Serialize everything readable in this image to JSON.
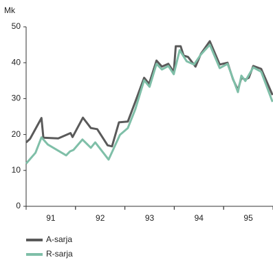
{
  "chart_data": {
    "type": "line",
    "y_label": "Mk",
    "xlim": [
      1991,
      1996
    ],
    "xticks": [
      {
        "value": 1991.5,
        "label": "91"
      },
      {
        "value": 1992.5,
        "label": "92"
      },
      {
        "value": 1993.5,
        "label": "93"
      },
      {
        "value": 1994.5,
        "label": "94"
      },
      {
        "value": 1995.5,
        "label": "95"
      }
    ],
    "ylim": [
      0,
      50
    ],
    "yticks": [
      0,
      10,
      20,
      30,
      40,
      50
    ],
    "grid": false,
    "series": [
      {
        "name": "A-sarja",
        "color": "#5a5a5a",
        "x": [
          1991.0,
          1991.08,
          1991.31,
          1991.35,
          1991.65,
          1991.9,
          1991.94,
          1992.15,
          1992.31,
          1992.44,
          1992.65,
          1992.74,
          1992.88,
          1993.06,
          1993.21,
          1993.39,
          1993.49,
          1993.64,
          1993.75,
          1993.88,
          1993.99,
          1994.03,
          1994.13,
          1994.19,
          1994.28,
          1994.43,
          1994.54,
          1994.72,
          1994.92,
          1995.08,
          1995.19,
          1995.29,
          1995.36,
          1995.44,
          1995.51,
          1995.6,
          1995.76,
          1995.99
        ],
        "values": [
          17.8,
          18.8,
          24.6,
          19.1,
          18.9,
          20.4,
          19.3,
          24.7,
          21.8,
          21.5,
          17,
          16.7,
          23.4,
          23.6,
          29.1,
          35.8,
          34.1,
          40.6,
          38.9,
          39.7,
          37.4,
          44.6,
          44.6,
          42,
          41.6,
          38.9,
          42.5,
          46,
          39.5,
          40,
          35.4,
          32.4,
          35.8,
          35.3,
          35.8,
          39.1,
          38.3,
          31
        ]
      },
      {
        "name": "R-sarja",
        "color": "#7fbfa8",
        "x": [
          1991.0,
          1991.19,
          1991.31,
          1991.44,
          1991.81,
          1991.89,
          1991.96,
          1992.14,
          1992.31,
          1992.4,
          1992.67,
          1992.9,
          1993.06,
          1993.21,
          1993.39,
          1993.5,
          1993.64,
          1993.75,
          1993.88,
          1993.99,
          1994.11,
          1994.25,
          1994.4,
          1994.54,
          1994.72,
          1994.92,
          1995.08,
          1995.29,
          1995.36,
          1995.44,
          1995.6,
          1995.76,
          1995.99
        ],
        "values": [
          11.9,
          14.9,
          19.2,
          17.2,
          14.2,
          15.3,
          15.7,
          18.6,
          16.3,
          17.8,
          13,
          19.9,
          21.8,
          27,
          35.1,
          33.3,
          39.7,
          38.1,
          39.1,
          36.8,
          43.5,
          40.4,
          39.5,
          42.3,
          45,
          38.5,
          39.7,
          31.8,
          36.4,
          34.9,
          38.7,
          37.5,
          29.1
        ]
      }
    ],
    "legend": "bottom-left"
  }
}
